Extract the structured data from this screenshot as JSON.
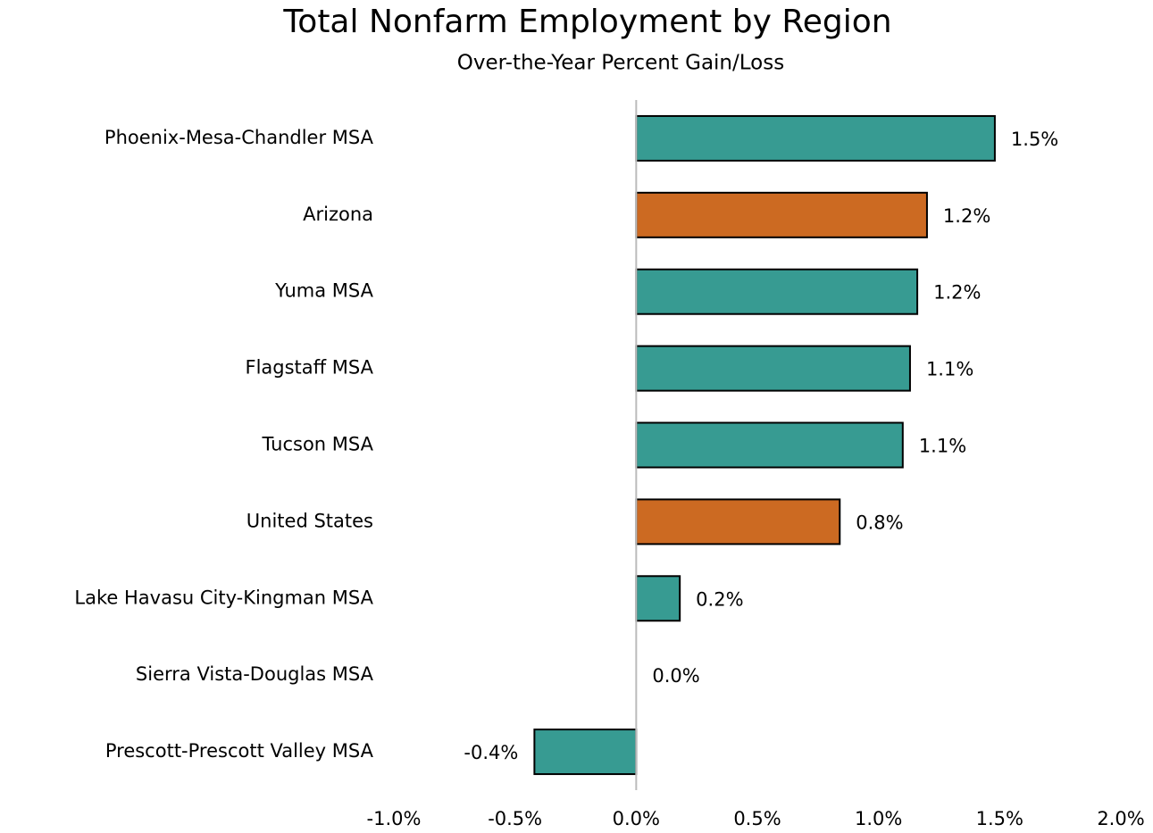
{
  "chart_data": {
    "type": "hbar",
    "title": "Total Nonfarm Employment by Region",
    "subtitle": "Over-the-Year Percent Gain/Loss",
    "categories": [
      "Phoenix-Mesa-Chandler MSA",
      "Arizona",
      "Yuma MSA",
      "Flagstaff MSA",
      "Tucson MSA",
      "United States",
      "Lake Havasu City-Kingman MSA",
      "Sierra Vista-Douglas MSA",
      "Prescott-Prescott Valley MSA"
    ],
    "values": [
      1.48,
      1.2,
      1.16,
      1.13,
      1.1,
      0.84,
      0.18,
      0.0,
      -0.42
    ],
    "value_labels": [
      "1.5%",
      "1.2%",
      "1.2%",
      "1.1%",
      "1.1%",
      "0.8%",
      "0.2%",
      "0.0%",
      "-0.4%"
    ],
    "colors": [
      "#379b92",
      "#cc6a22",
      "#379b92",
      "#379b92",
      "#379b92",
      "#cc6a22",
      "#379b92",
      "#379b92",
      "#379b92"
    ],
    "xlim": [
      -1,
      2
    ],
    "xticks": [
      {
        "value": -1,
        "label": "-1.0%"
      },
      {
        "value": -0.5,
        "label": "-0.5%"
      },
      {
        "value": 0,
        "label": "0.0%"
      },
      {
        "value": 0.5,
        "label": "0.5%"
      },
      {
        "value": 1,
        "label": "1.0%"
      },
      {
        "value": 1.5,
        "label": "1.5%"
      },
      {
        "value": 2,
        "label": "2.0%"
      }
    ],
    "grid": false
  }
}
